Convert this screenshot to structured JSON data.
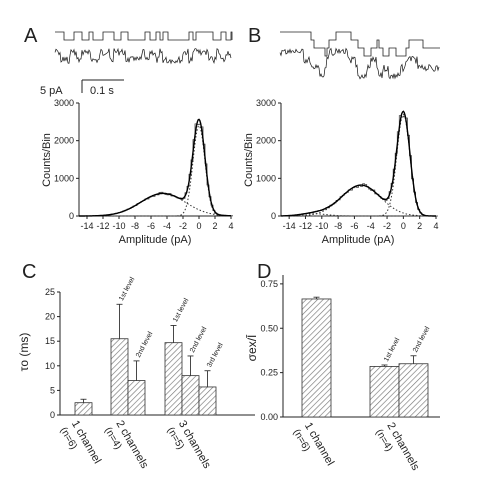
{
  "panel_labels": {
    "a": "A",
    "b": "B",
    "c": "C",
    "d": "D"
  },
  "scale_bar": {
    "current": "5 pA",
    "time": "0.1 s"
  },
  "colors": {
    "ink": "#222222",
    "fit": "#000000",
    "hatch": "#777777"
  },
  "chart_data": [
    {
      "panel": "A",
      "type": "line",
      "ylabel": "Counts/Bin",
      "xlabel": "Amplitude (pA)",
      "xlim": [
        -15,
        4
      ],
      "ylim": [
        0,
        3000
      ],
      "xticks": [
        "-14",
        "-12",
        "-10",
        "-8",
        "-6",
        "-4",
        "-2",
        "0",
        "2",
        "4"
      ],
      "yticks": [
        "0",
        "1000",
        "2000",
        "3000"
      ],
      "components": [
        {
          "kind": "gaussian",
          "mean": 0.0,
          "sd": 0.75,
          "peak": 2400
        },
        {
          "kind": "gaussian",
          "mean": -4.5,
          "sd": 2.8,
          "peak": 600
        }
      ]
    },
    {
      "panel": "B",
      "type": "line",
      "ylabel": "Counts/Bin",
      "xlabel": "Amplitude (pA)",
      "xlim": [
        -15,
        4
      ],
      "ylim": [
        0,
        3000
      ],
      "xticks": [
        "-14",
        "-12",
        "-10",
        "-8",
        "-6",
        "-4",
        "-2",
        "0",
        "2",
        "4"
      ],
      "yticks": [
        "0",
        "1000",
        "2000",
        "3000"
      ],
      "components": [
        {
          "kind": "gaussian",
          "mean": 0.0,
          "sd": 0.8,
          "peak": 2700
        },
        {
          "kind": "gaussian",
          "mean": -5.2,
          "sd": 2.4,
          "peak": 820
        },
        {
          "kind": "gaussian",
          "mean": -11.0,
          "sd": 1.6,
          "peak": 60
        }
      ]
    },
    {
      "panel": "C",
      "type": "bar",
      "ylabel": "τo (ms)",
      "ylim": [
        0,
        25
      ],
      "yticks": [
        "0",
        "5",
        "10",
        "15",
        "20",
        "25"
      ],
      "groups": [
        {
          "name": "1 channel (n=6)",
          "bars": [
            {
              "value": 2.5,
              "error": 0.7,
              "label": ""
            }
          ]
        },
        {
          "name": "2 channels (n=4)",
          "bars": [
            {
              "value": 15.5,
              "error": 7.0,
              "label": "1st level"
            },
            {
              "value": 7.0,
              "error": 4.0,
              "label": "2nd level"
            }
          ]
        },
        {
          "name": "3 channels (n=5)",
          "bars": [
            {
              "value": 14.7,
              "error": 3.5,
              "label": "1st level"
            },
            {
              "value": 8.0,
              "error": 4.0,
              "label": "2nd level"
            },
            {
              "value": 5.7,
              "error": 3.3,
              "label": "3rd level"
            }
          ]
        }
      ]
    },
    {
      "panel": "D",
      "type": "bar",
      "ylabel": "σex/Ī",
      "ylim": [
        0,
        0.8
      ],
      "yticks": [
        "0.00",
        "0.25",
        "0.50",
        "0.75"
      ],
      "groups": [
        {
          "name": "1 channel (n=6)",
          "bars": [
            {
              "value": 0.665,
              "error": 0.01,
              "label": ""
            }
          ]
        },
        {
          "name": "2 channels (n=4)",
          "bars": [
            {
              "value": 0.285,
              "error": 0.008,
              "label": "1st level"
            },
            {
              "value": 0.3,
              "error": 0.045,
              "label": "2nd level"
            }
          ]
        }
      ]
    }
  ]
}
